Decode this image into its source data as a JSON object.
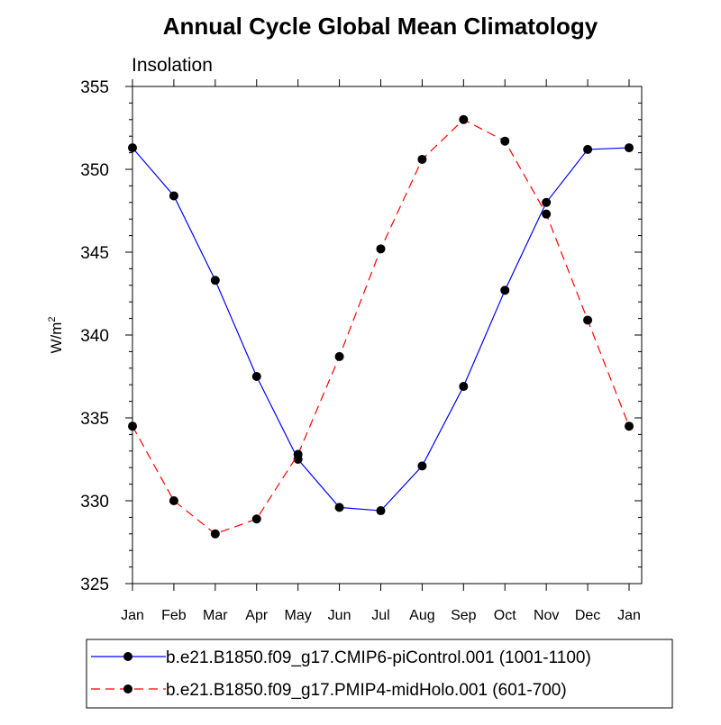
{
  "chart_data": {
    "type": "line",
    "title": "Annual Cycle Global Mean Climatology",
    "subtitle": "Insolation",
    "ylabel": "W/m",
    "ylabel_superscript": "2",
    "xlabel": "",
    "categories": [
      "Jan",
      "Feb",
      "Mar",
      "Apr",
      "May",
      "Jun",
      "Jul",
      "Aug",
      "Sep",
      "Oct",
      "Nov",
      "Dec",
      "Jan"
    ],
    "ylim": [
      325,
      355
    ],
    "yticks": [
      325,
      330,
      335,
      340,
      345,
      350,
      355
    ],
    "series": [
      {
        "name": "b.e21.B1850.f09_g17.CMIP6-piControl.001 (1001-1100)",
        "color": "#0000ff",
        "dash": "solid",
        "values": [
          351.3,
          348.4,
          343.3,
          337.5,
          332.5,
          329.6,
          329.4,
          332.1,
          336.9,
          342.7,
          348.0,
          351.2,
          351.3
        ]
      },
      {
        "name": "b.e21.B1850.f09_g17.PMIP4-midHolo.001 (601-700)",
        "color": "#ff0000",
        "dash": "dashed",
        "values": [
          334.5,
          330.0,
          328.0,
          328.9,
          332.8,
          338.7,
          345.2,
          350.6,
          353.0,
          351.7,
          347.3,
          340.9,
          334.5
        ]
      }
    ],
    "legend_position": "bottom"
  }
}
